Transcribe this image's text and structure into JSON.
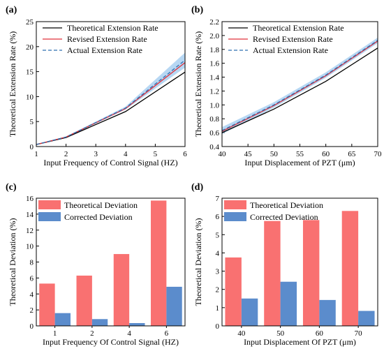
{
  "chart_data": [
    {
      "panel_label": "(a)",
      "type": "line",
      "xlabel": "Input Frequency of Control Signal (HZ)",
      "ylabel": "Theoretical Extension Rate (%)",
      "xlim": [
        1,
        6
      ],
      "ylim": [
        0,
        25
      ],
      "xticks": [
        1,
        2,
        3,
        4,
        5,
        6
      ],
      "yticks": [
        0,
        5,
        10,
        15,
        20,
        25
      ],
      "legend": "top-left",
      "x": [
        1,
        2,
        4,
        6
      ],
      "series": [
        {
          "name": "Theoretical Extension Rate",
          "values": [
            0.4,
            1.8,
            7.0,
            14.9
          ],
          "color": "#000000",
          "style": "solid"
        },
        {
          "name": "Revised Extension Rate",
          "values": [
            0.4,
            1.9,
            7.6,
            16.8
          ],
          "color": "#e0303a",
          "style": "solid"
        },
        {
          "name": "Actual Extension Rate",
          "values": [
            0.4,
            1.9,
            7.7,
            17.3
          ],
          "color": "#2f6fb0",
          "style": "dashed"
        }
      ],
      "band": {
        "color": "#9fc9ef",
        "upper": [
          0.5,
          2.0,
          8.0,
          18.8
        ],
        "lower": [
          0.35,
          1.8,
          7.4,
          15.8
        ]
      }
    },
    {
      "panel_label": "(b)",
      "type": "line",
      "xlabel": "Input Displacement of PZT (μm)",
      "ylabel": "Theoretical Extension Rate (%)",
      "xlim": [
        40,
        70
      ],
      "ylim": [
        0.4,
        2.2
      ],
      "xticks": [
        40,
        45,
        50,
        55,
        60,
        65,
        70
      ],
      "yticks": [
        0.4,
        0.6,
        0.8,
        1.0,
        1.2,
        1.4,
        1.6,
        1.8,
        2.0,
        2.2
      ],
      "legend": "top-left",
      "x": [
        40,
        50,
        60,
        70
      ],
      "series": [
        {
          "name": "Theoretical Extension Rate",
          "values": [
            0.6,
            0.94,
            1.34,
            1.82
          ],
          "color": "#000000",
          "style": "solid"
        },
        {
          "name": "Revised Extension Rate",
          "values": [
            0.62,
            0.99,
            1.42,
            1.92
          ],
          "color": "#e0303a",
          "style": "solid"
        },
        {
          "name": "Actual Extension Rate",
          "values": [
            0.63,
            1.0,
            1.43,
            1.93
          ],
          "color": "#2f6fb0",
          "style": "dashed"
        }
      ],
      "band": {
        "color": "#9fc9ef",
        "upper": [
          0.68,
          1.04,
          1.47,
          1.97
        ],
        "lower": [
          0.58,
          0.96,
          1.39,
          1.89
        ]
      }
    },
    {
      "panel_label": "(c)",
      "type": "bar",
      "xlabel": "Input Frequency Of Control Signal (HZ)",
      "ylabel": "Theoretical Deviation (%)",
      "ylim": [
        0,
        16
      ],
      "yticks": [
        0,
        2,
        4,
        6,
        8,
        10,
        12,
        14,
        16
      ],
      "legend": "top-left",
      "categories": [
        "1",
        "2",
        "4",
        "6"
      ],
      "series": [
        {
          "name": "Theoretical Deviation",
          "values": [
            5.3,
            6.3,
            9.0,
            15.7
          ],
          "color": "#f97171"
        },
        {
          "name": "Corrected Deviation",
          "values": [
            1.6,
            0.85,
            0.35,
            4.9
          ],
          "color": "#5b8ccc"
        }
      ]
    },
    {
      "panel_label": "(d)",
      "type": "bar",
      "xlabel": "Input Displacement Of PZT (μm)",
      "ylabel": "Theoretical Deviation (%)",
      "ylim": [
        0,
        7
      ],
      "yticks": [
        0,
        1,
        2,
        3,
        4,
        5,
        6,
        7
      ],
      "legend": "top-left",
      "categories": [
        "40",
        "50",
        "60",
        "70"
      ],
      "series": [
        {
          "name": "Theoretical Deviation",
          "values": [
            3.75,
            5.75,
            5.8,
            6.3
          ],
          "color": "#f97171"
        },
        {
          "name": "Corrected Deviation",
          "values": [
            1.5,
            2.42,
            1.42,
            0.82
          ],
          "color": "#5b8ccc"
        }
      ]
    }
  ]
}
